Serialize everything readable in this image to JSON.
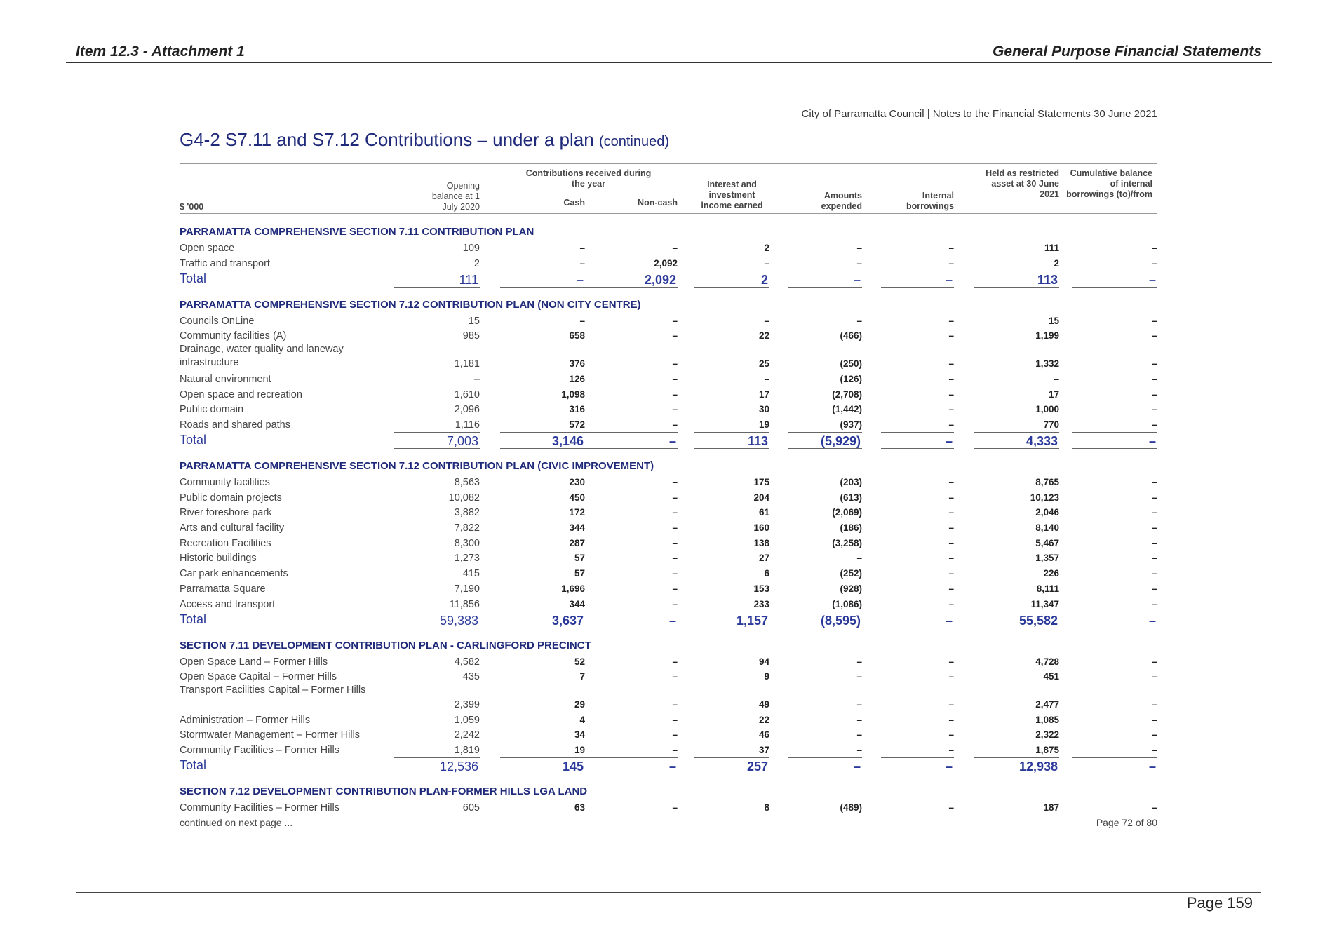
{
  "header": {
    "left": "Item 12.3 - Attachment 1",
    "right": "General Purpose Financial Statements"
  },
  "subheader": "City of Parramatta Council | Notes to the Financial Statements 30 June 2021",
  "title": {
    "main": "G4-2 S7.11 and S7.12 Contributions – under a plan",
    "suffix": "(continued)"
  },
  "columns": {
    "unit": "$ '000",
    "opening": "Opening balance at 1 July 2020",
    "group": "Contributions received during the year",
    "cash": "Cash",
    "noncash": "Non-cash",
    "interest": "Interest and investment income earned",
    "expended": "Amounts expended",
    "borrowings": "Internal borrowings",
    "held": "Held as restricted asset at 30 June 2021",
    "cumulative": "Cumulative balance of internal borrowings (to)/from"
  },
  "sections": [
    {
      "title": "PARRAMATTA COMPREHENSIVE SECTION 7.11 CONTRIBUTION PLAN",
      "rows": [
        {
          "label": "Open space",
          "values": [
            "109",
            "–",
            "–",
            "2",
            "–",
            "–",
            "111",
            "–"
          ]
        },
        {
          "label": "Traffic and transport",
          "values": [
            "2",
            "–",
            "2,092",
            "–",
            "–",
            "–",
            "2",
            "–"
          ]
        }
      ],
      "total": {
        "label": "Total",
        "values": [
          "111",
          "–",
          "2,092",
          "2",
          "–",
          "–",
          "113",
          "–"
        ]
      }
    },
    {
      "title": "PARRAMATTA COMPREHENSIVE SECTION 7.12 CONTRIBUTION PLAN (NON CITY CENTRE)",
      "rows": [
        {
          "label": "Councils OnLine",
          "values": [
            "15",
            "–",
            "–",
            "–",
            "–",
            "–",
            "15",
            "–"
          ]
        },
        {
          "label": "Community facilities (A)",
          "values": [
            "985",
            "658",
            "–",
            "22",
            "(466)",
            "–",
            "1,199",
            "–"
          ]
        },
        {
          "label": "Drainage, water quality and laneway infrastructure",
          "values": [
            "1,181",
            "376",
            "–",
            "25",
            "(250)",
            "–",
            "1,332",
            "–"
          ]
        },
        {
          "label": "Natural environment",
          "values": [
            "–",
            "126",
            "–",
            "–",
            "(126)",
            "–",
            "–",
            "–"
          ]
        },
        {
          "label": "Open space and recreation",
          "values": [
            "1,610",
            "1,098",
            "–",
            "17",
            "(2,708)",
            "–",
            "17",
            "–"
          ]
        },
        {
          "label": "Public domain",
          "values": [
            "2,096",
            "316",
            "–",
            "30",
            "(1,442)",
            "–",
            "1,000",
            "–"
          ]
        },
        {
          "label": "Roads and shared paths",
          "values": [
            "1,116",
            "572",
            "–",
            "19",
            "(937)",
            "–",
            "770",
            "–"
          ]
        }
      ],
      "total": {
        "label": "Total",
        "values": [
          "7,003",
          "3,146",
          "–",
          "113",
          "(5,929)",
          "–",
          "4,333",
          "–"
        ]
      }
    },
    {
      "title": "PARRAMATTA COMPREHENSIVE SECTION 7.12 CONTRIBUTION PLAN (CIVIC IMPROVEMENT)",
      "rows": [
        {
          "label": "Community facilities",
          "values": [
            "8,563",
            "230",
            "–",
            "175",
            "(203)",
            "–",
            "8,765",
            "–"
          ]
        },
        {
          "label": "Public domain projects",
          "values": [
            "10,082",
            "450",
            "–",
            "204",
            "(613)",
            "–",
            "10,123",
            "–"
          ]
        },
        {
          "label": "River foreshore park",
          "values": [
            "3,882",
            "172",
            "–",
            "61",
            "(2,069)",
            "–",
            "2,046",
            "–"
          ]
        },
        {
          "label": "Arts and cultural facility",
          "values": [
            "7,822",
            "344",
            "–",
            "160",
            "(186)",
            "–",
            "8,140",
            "–"
          ]
        },
        {
          "label": "Recreation Facilities",
          "values": [
            "8,300",
            "287",
            "–",
            "138",
            "(3,258)",
            "–",
            "5,467",
            "–"
          ]
        },
        {
          "label": "Historic buildings",
          "values": [
            "1,273",
            "57",
            "–",
            "27",
            "–",
            "–",
            "1,357",
            "–"
          ]
        },
        {
          "label": "Car park enhancements",
          "values": [
            "415",
            "57",
            "–",
            "6",
            "(252)",
            "–",
            "226",
            "–"
          ]
        },
        {
          "label": "Parramatta Square",
          "values": [
            "7,190",
            "1,696",
            "–",
            "153",
            "(928)",
            "–",
            "8,111",
            "–"
          ]
        },
        {
          "label": "Access and transport",
          "values": [
            "11,856",
            "344",
            "–",
            "233",
            "(1,086)",
            "–",
            "11,347",
            "–"
          ]
        }
      ],
      "total": {
        "label": "Total",
        "values": [
          "59,383",
          "3,637",
          "–",
          "1,157",
          "(8,595)",
          "–",
          "55,582",
          "–"
        ]
      }
    },
    {
      "title": "SECTION 7.11 DEVELOPMENT CONTRIBUTION PLAN - CARLINGFORD PRECINCT",
      "rows": [
        {
          "label": "Open Space Land – Former Hills",
          "values": [
            "4,582",
            "52",
            "–",
            "94",
            "–",
            "–",
            "4,728",
            "–"
          ]
        },
        {
          "label": "Open Space Capital – Former Hills",
          "values": [
            "435",
            "7",
            "–",
            "9",
            "–",
            "–",
            "451",
            "–"
          ]
        },
        {
          "label": "Transport Facilities Capital – Former Hills",
          "values": [
            "2,399",
            "29",
            "–",
            "49",
            "–",
            "–",
            "2,477",
            "–"
          ]
        },
        {
          "label": "Administration – Former Hills",
          "values": [
            "1,059",
            "4",
            "–",
            "22",
            "–",
            "–",
            "1,085",
            "–"
          ]
        },
        {
          "label": "Stormwater Management – Former Hills",
          "values": [
            "2,242",
            "34",
            "–",
            "46",
            "–",
            "–",
            "2,322",
            "–"
          ]
        },
        {
          "label": "Community Facilities – Former Hills",
          "values": [
            "1,819",
            "19",
            "–",
            "37",
            "–",
            "–",
            "1,875",
            "–"
          ]
        }
      ],
      "total": {
        "label": "Total",
        "values": [
          "12,536",
          "145",
          "–",
          "257",
          "–",
          "–",
          "12,938",
          "–"
        ]
      }
    },
    {
      "title": "SECTION 7.12 DEVELOPMENT CONTRIBUTION PLAN-FORMER HILLS LGA LAND",
      "rows": [
        {
          "label": "Community Facilities – Former Hills",
          "values": [
            "605",
            "63",
            "–",
            "8",
            "(489)",
            "–",
            "187",
            "–"
          ]
        }
      ]
    }
  ],
  "footer": {
    "continued": "continued on next page ...",
    "page_of": "Page 72 of 80",
    "page": "Page 159"
  }
}
